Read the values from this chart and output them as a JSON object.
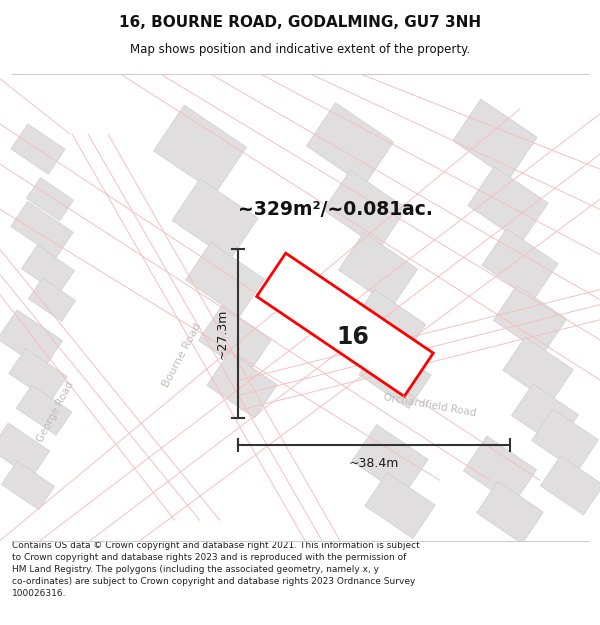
{
  "title": "16, BOURNE ROAD, GODALMING, GU7 3NH",
  "subtitle": "Map shows position and indicative extent of the property.",
  "area_text": "~329m²/~0.081ac.",
  "dim_width": "~38.4m",
  "dim_height": "~27.3m",
  "plot_label": "16",
  "footer": "Contains OS data © Crown copyright and database right 2021. This information is subject\nto Crown copyright and database rights 2023 and is reproduced with the permission of\nHM Land Registry. The polygons (including the associated geometry, namely x, y\nco-ordinates) are subject to Crown copyright and database rights 2023 Ordnance Survey\n100026316.",
  "map_bg": "#ffffff",
  "road_color": "#f5c0c0",
  "building_color": "#e0dede",
  "building_border": "#d0cdcd",
  "plot_color": "#ff0000",
  "street_label_color": "#c0bcbc",
  "title_color": "#111111",
  "footer_color": "#222222"
}
